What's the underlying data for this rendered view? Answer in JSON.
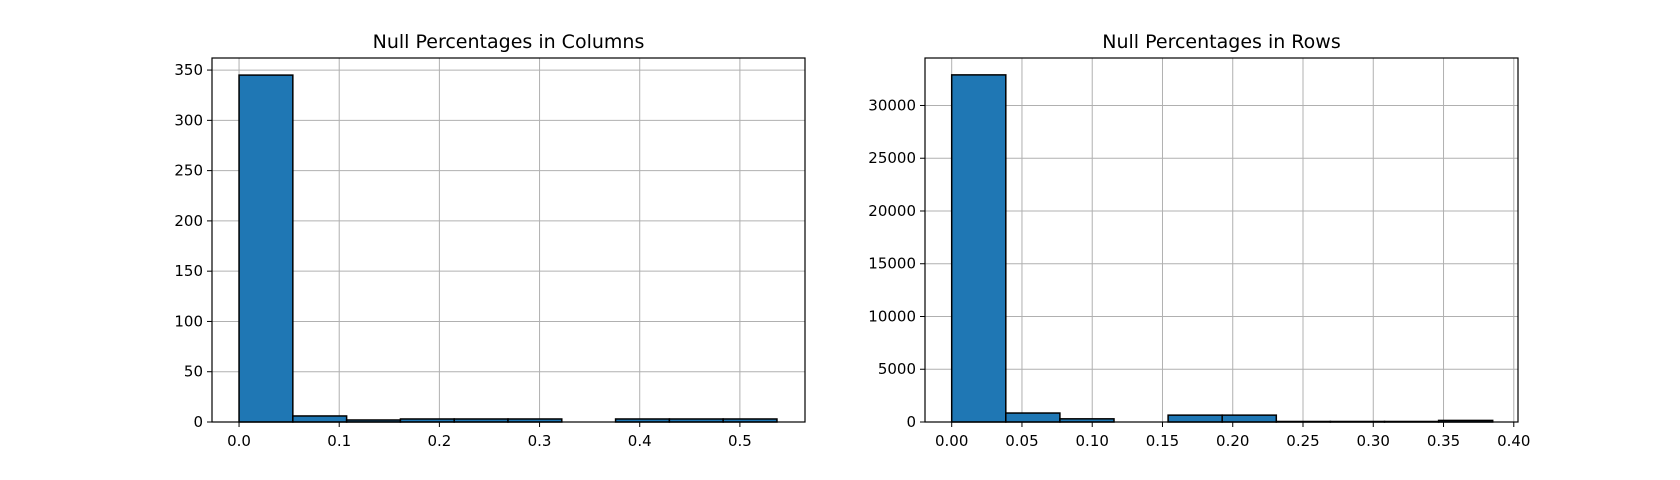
{
  "chart_data": [
    {
      "type": "bar",
      "title": "Null Percentages in Columns",
      "xlabel": "",
      "ylabel": "",
      "xlim": [
        -0.027,
        0.565
      ],
      "ylim": [
        0,
        362
      ],
      "xticks": [
        0.0,
        0.1,
        0.2,
        0.3,
        0.4,
        0.5
      ],
      "xtick_labels": [
        "0.0",
        "0.1",
        "0.2",
        "0.3",
        "0.4",
        "0.5"
      ],
      "yticks": [
        0,
        50,
        100,
        150,
        200,
        250,
        300,
        350
      ],
      "ytick_labels": [
        "0",
        "50",
        "100",
        "150",
        "200",
        "250",
        "300",
        "350"
      ],
      "bin_edges": [
        0.0,
        0.0537,
        0.1074,
        0.1611,
        0.2148,
        0.2685,
        0.3222,
        0.3759,
        0.4296,
        0.4833,
        0.537
      ],
      "values": [
        345,
        6,
        2,
        3,
        3,
        3,
        0,
        3,
        3,
        3
      ],
      "grid": true,
      "colors": {
        "bar": "#1f77b4",
        "edge": "#000000"
      }
    },
    {
      "type": "bar",
      "title": "Null Percentages in Rows",
      "xlabel": "",
      "ylabel": "",
      "xlim": [
        -0.019,
        0.403
      ],
      "ylim": [
        0,
        34500
      ],
      "xticks": [
        0.0,
        0.05,
        0.1,
        0.15,
        0.2,
        0.25,
        0.3,
        0.35,
        0.4
      ],
      "xtick_labels": [
        "0.00",
        "0.05",
        "0.10",
        "0.15",
        "0.20",
        "0.25",
        "0.30",
        "0.35",
        "0.40"
      ],
      "yticks": [
        0,
        5000,
        10000,
        15000,
        20000,
        25000,
        30000
      ],
      "ytick_labels": [
        "0",
        "5000",
        "10000",
        "15000",
        "20000",
        "25000",
        "30000"
      ],
      "bin_edges": [
        0.0,
        0.0385,
        0.077,
        0.1155,
        0.154,
        0.1925,
        0.231,
        0.2695,
        0.308,
        0.3465,
        0.385
      ],
      "values": [
        32900,
        850,
        300,
        0,
        650,
        650,
        50,
        50,
        50,
        150
      ],
      "grid": true,
      "colors": {
        "bar": "#1f77b4",
        "edge": "#000000"
      }
    }
  ]
}
